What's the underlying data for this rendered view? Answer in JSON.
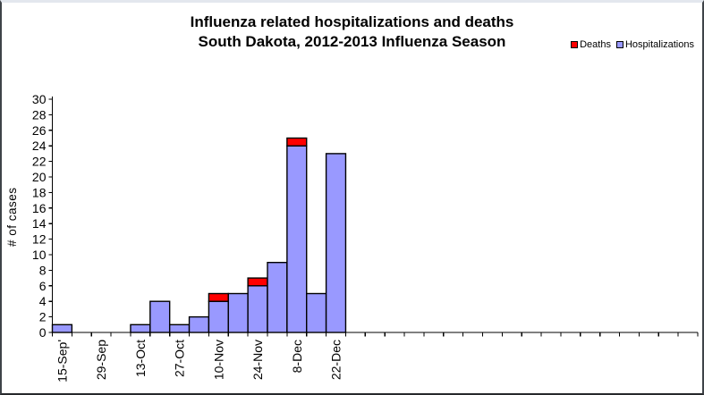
{
  "chart_data": {
    "type": "bar",
    "stacked": true,
    "title_lines": [
      "Influenza related hospitalizations and deaths",
      "South Dakota, 2012-2013 Influenza Season"
    ],
    "ylabel": "# of cases",
    "xlabel": "",
    "ylim": [
      0,
      30
    ],
    "ytick_step": 2,
    "grid": false,
    "background_color": "#ffffff",
    "bar_outline_color": "#000000",
    "legend": {
      "position": "top-right",
      "entries": [
        {
          "label": "Deaths",
          "color": "#ff0000"
        },
        {
          "label": "Hospitalizations",
          "color": "#9999ff"
        }
      ]
    },
    "x_tick_labels": [
      "15-Sep'",
      "",
      "29-Sep",
      "",
      "13-Oct",
      "",
      "27-Oct",
      "",
      "10-Nov",
      "",
      "24-Nov",
      "",
      "8-Dec",
      "",
      "22-Dec",
      "",
      "",
      "",
      "",
      "",
      "",
      "",
      "",
      "",
      "",
      "",
      "",
      "",
      "",
      "",
      "",
      "",
      ""
    ],
    "series": [
      {
        "name": "Hospitalizations",
        "color": "#9999ff",
        "values": [
          1,
          0,
          0,
          0,
          1,
          4,
          1,
          2,
          4,
          5,
          6,
          9,
          24,
          5,
          23,
          0,
          0,
          0,
          0,
          0,
          0,
          0,
          0,
          0,
          0,
          0,
          0,
          0,
          0,
          0,
          0,
          0,
          0
        ]
      },
      {
        "name": "Deaths",
        "color": "#ff0000",
        "values": [
          0,
          0,
          0,
          0,
          0,
          0,
          0,
          0,
          1,
          0,
          1,
          0,
          1,
          0,
          0,
          0,
          0,
          0,
          0,
          0,
          0,
          0,
          0,
          0,
          0,
          0,
          0,
          0,
          0,
          0,
          0,
          0,
          0
        ]
      }
    ]
  }
}
